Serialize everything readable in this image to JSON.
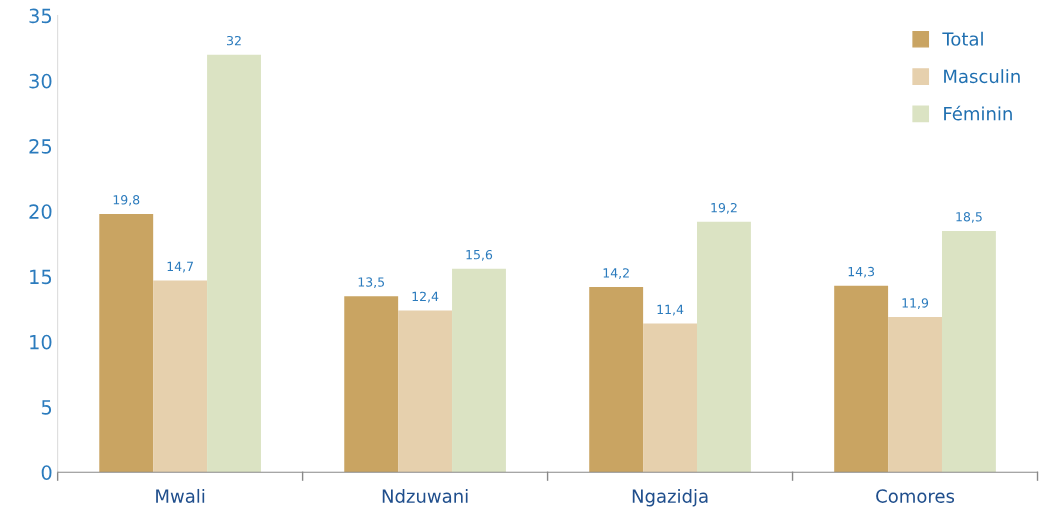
{
  "chart_data": {
    "type": "bar",
    "categories": [
      "Mwali",
      "Ndzuwani",
      "Ngazidja",
      "Comores"
    ],
    "series": [
      {
        "name": "Total",
        "color": "#c9a462",
        "values": [
          19.8,
          13.5,
          14.2,
          14.3
        ],
        "value_labels": [
          "19,8",
          "13,5",
          "14,2",
          "14,3"
        ]
      },
      {
        "name": "Masculin",
        "color": "#e6d0ad",
        "values": [
          14.7,
          12.4,
          11.4,
          11.9
        ],
        "value_labels": [
          "14,7",
          "12,4",
          "11,4",
          "11,9"
        ]
      },
      {
        "name": "Féminin",
        "color": "#dbe3c3",
        "values": [
          32,
          15.6,
          19.2,
          18.5
        ],
        "value_labels": [
          "32",
          "15,6",
          "19,2",
          "18,5"
        ]
      }
    ],
    "ylim": [
      0,
      35
    ],
    "yticks": [
      0,
      5,
      10,
      15,
      20,
      25,
      30,
      35
    ],
    "grid": false,
    "legend": "top right"
  }
}
